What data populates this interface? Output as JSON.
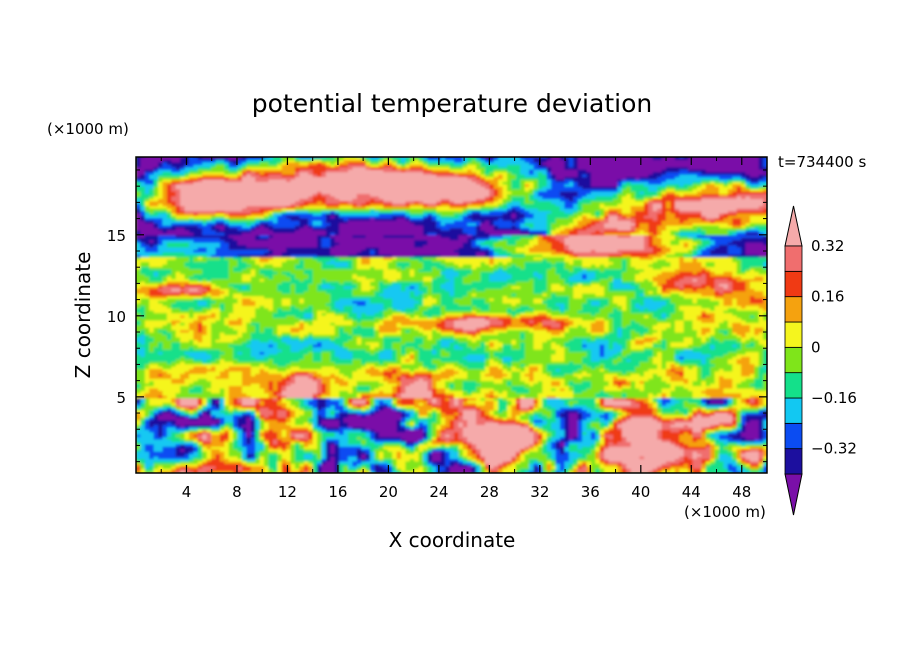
{
  "chart_data": {
    "type": "heatmap",
    "title": "potential temperature deviation",
    "xlabel": "X coordinate",
    "ylabel": "Z coordinate",
    "x_unit": "(×1000 m)",
    "y_unit": "(×1000 m)",
    "time_label": "t=734400 s",
    "xlim": [
      0,
      50
    ],
    "ylim": [
      0.3,
      19.8
    ],
    "x_ticks": [
      "4",
      "8",
      "12",
      "16",
      "20",
      "24",
      "28",
      "32",
      "36",
      "40",
      "44",
      "48"
    ],
    "y_ticks": [
      "5",
      "10",
      "15"
    ],
    "colorbar": {
      "levels": [
        -0.4,
        -0.32,
        -0.24,
        -0.16,
        -0.08,
        0,
        0.08,
        0.16,
        0.24,
        0.32,
        0.4
      ],
      "colors": [
        "#7a0fa8",
        "#1c0f9e",
        "#0b4cf2",
        "#12c8f2",
        "#14e08a",
        "#7fe51a",
        "#f5f51e",
        "#f5a20f",
        "#f03a14",
        "#f06e6e",
        "#f5aaaa"
      ],
      "tick_labels": [
        "0.32",
        "0.16",
        "0",
        "−0.16",
        "−0.32"
      ],
      "extend": "both"
    },
    "field_description": [
      {
        "z_range": [
          15.5,
          19.8
        ],
        "pattern": "purple background with pink warm anomalies (upper-left and upper-right lobes)"
      },
      {
        "z_range": [
          13.5,
          15.5
        ],
        "pattern": "purple band (-0.4), pink lobe near x 25-45"
      },
      {
        "z_range": [
          5.5,
          13.5
        ],
        "pattern": "green/cyan (about -0.16 to 0.08), blue patches near z 10 and 5, pink streak near z 9-10 x 20-35"
      },
      {
        "z_range": [
          0.3,
          5.0
        ],
        "pattern": "turbulent mixed layer: purple/blue cold cells and red/pink warm cells; strong warm cells near x 28-32 and x 37-46"
      }
    ]
  }
}
